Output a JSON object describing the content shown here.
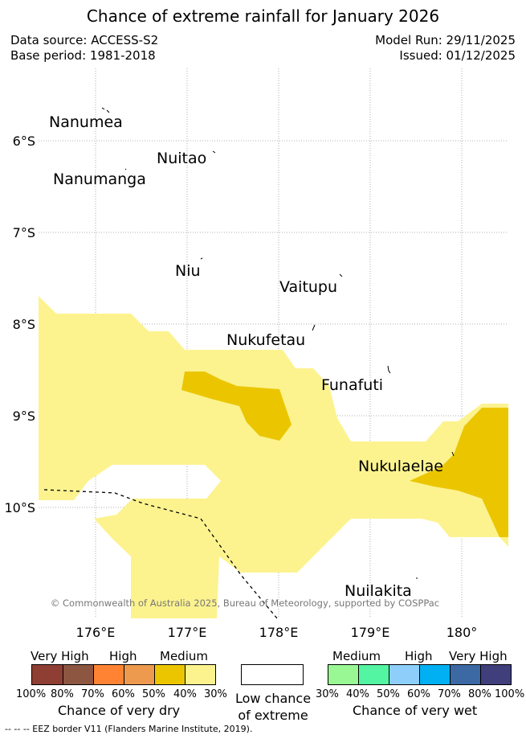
{
  "title": "Chance of extreme rainfall for January 2026",
  "meta": {
    "data_source": "Data source: ACCESS-S2",
    "base_period": "Base period: 1981-2018",
    "model_run": "Model Run: 29/11/2025",
    "issued": "Issued: 01/12/2025"
  },
  "map": {
    "lat_labels": [
      "6°S",
      "7°S",
      "8°S",
      "9°S",
      "10°S"
    ],
    "lon_labels": [
      "176°E",
      "177°E",
      "178°E",
      "179°E",
      "180°"
    ],
    "places": [
      "Nanumea",
      "Nuitao",
      "Nanumanga",
      "Niu",
      "Vaitupu",
      "Nukufetau",
      "Funafuti",
      "Nukulaelae",
      "Nuilakita"
    ],
    "copyright": "© Commonwealth of Australia 2025, Bureau of Meteorology, supported by COSPPac",
    "colors": {
      "medium_dry": "#fcf38f",
      "high_dry_40_50": "#ebc600",
      "eez_line": "#000000"
    }
  },
  "legend": {
    "dry": {
      "categories": [
        "Very High",
        "High",
        "Medium"
      ],
      "pcts": [
        "100%",
        "80%",
        "70%",
        "60%",
        "50%",
        "40%",
        "30%"
      ],
      "colors": [
        "#8f3e33",
        "#8c5641",
        "#ff8333",
        "#ed9a4e",
        "#ebc600",
        "#fcf38f"
      ],
      "title": "Chance of very dry"
    },
    "low": {
      "line1": "Low chance",
      "line2": "of extreme",
      "color": "#ffffff"
    },
    "wet": {
      "categories": [
        "Medium",
        "High",
        "Very High"
      ],
      "pcts": [
        "30%",
        "40%",
        "50%",
        "60%",
        "70%",
        "80%",
        "100%"
      ],
      "colors": [
        "#99f794",
        "#53f4a2",
        "#8dcefa",
        "#00b0f3",
        "#3c68a4",
        "#413e7c"
      ],
      "title": "Chance of very wet"
    }
  },
  "footer": "-- -- -- EEZ border V11 (Flanders Marine Institute, 2019)."
}
